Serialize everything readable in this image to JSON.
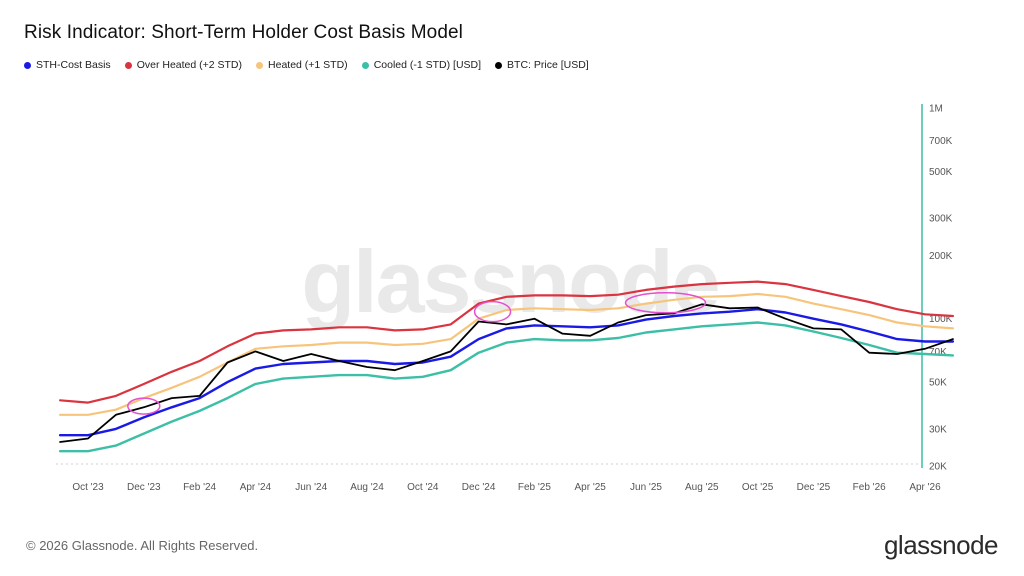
{
  "title": "Risk Indicator: Short-Term Holder Cost Basis Model",
  "footer": {
    "copyright": "© 2026 Glassnode. All Rights Reserved.",
    "logo": "glassnode",
    "watermark": "glassnode"
  },
  "chart_data": {
    "type": "line",
    "title": "Risk Indicator: Short-Term Holder Cost Basis Model",
    "x_ticks": [
      "Oct '23",
      "Dec '23",
      "Feb '24",
      "Apr '24",
      "Jun '24",
      "Aug '24",
      "Oct '24",
      "Dec '24",
      "Feb '25",
      "Apr '25",
      "Jun '25",
      "Aug '25",
      "Oct '25",
      "Dec '25",
      "Feb '26",
      "Apr '26"
    ],
    "y_scale": "log",
    "y_ticks": [
      {
        "value": 20000,
        "label": "20K"
      },
      {
        "value": 30000,
        "label": "30K"
      },
      {
        "value": 50000,
        "label": "50K"
      },
      {
        "value": 70000,
        "label": "70K"
      },
      {
        "value": 100000,
        "label": "100K"
      },
      {
        "value": 200000,
        "label": "200K"
      },
      {
        "value": 300000,
        "label": "300K"
      },
      {
        "value": 500000,
        "label": "500K"
      },
      {
        "value": 700000,
        "label": "700K"
      },
      {
        "value": 1000000,
        "label": "1M"
      }
    ],
    "ylim": [
      20000,
      1000000
    ],
    "x": [
      "2023-09-01",
      "2023-10-01",
      "2023-11-01",
      "2023-12-01",
      "2024-01-01",
      "2024-02-01",
      "2024-03-01",
      "2024-04-01",
      "2024-05-01",
      "2024-06-01",
      "2024-07-01",
      "2024-08-01",
      "2024-09-01",
      "2024-10-01",
      "2024-11-01",
      "2024-12-01",
      "2025-01-01",
      "2025-02-01",
      "2025-03-01",
      "2025-04-01",
      "2025-05-01",
      "2025-06-01",
      "2025-07-01",
      "2025-08-01",
      "2025-09-01",
      "2025-10-01",
      "2025-11-01",
      "2025-12-01",
      "2026-01-01",
      "2026-02-01",
      "2026-03-01",
      "2026-04-01",
      "2026-05-01"
    ],
    "series": [
      {
        "name": "STH-Cost Basis",
        "color": "#1a1ae6",
        "values": [
          28000,
          28000,
          30000,
          34000,
          38000,
          42000,
          50000,
          58000,
          61000,
          62000,
          63000,
          63000,
          61000,
          62000,
          66000,
          80000,
          90000,
          93000,
          92000,
          91000,
          93000,
          99000,
          103000,
          106000,
          108000,
          111000,
          107000,
          100000,
          94000,
          87000,
          80000,
          78000,
          78000
        ]
      },
      {
        "name": "Over Heated (+2 STD)",
        "color": "#d9343f",
        "values": [
          41000,
          40000,
          43000,
          49000,
          56000,
          63000,
          74000,
          85000,
          88000,
          89000,
          91000,
          91000,
          88000,
          89000,
          94000,
          118000,
          127000,
          129000,
          129000,
          128000,
          130000,
          137000,
          142000,
          146000,
          148000,
          150000,
          146000,
          137000,
          128000,
          120000,
          111000,
          105000,
          103000
        ]
      },
      {
        "name": "Heated (+1 STD)",
        "color": "#f7c47c",
        "values": [
          35000,
          35000,
          37000,
          42000,
          47000,
          53000,
          62000,
          72000,
          74000,
          75000,
          77000,
          77000,
          75000,
          76000,
          80000,
          100000,
          110000,
          112000,
          111000,
          110000,
          112000,
          118000,
          123000,
          127000,
          128000,
          131000,
          127000,
          118000,
          111000,
          104000,
          96000,
          92000,
          90000
        ]
      },
      {
        "name": "Cooled (-1 STD) [USD]",
        "color": "#3cbfa6",
        "values": [
          23500,
          23500,
          25000,
          28500,
          32500,
          36500,
          42000,
          49000,
          52000,
          53000,
          54000,
          54000,
          52000,
          53000,
          57000,
          69000,
          77000,
          80000,
          79000,
          79000,
          81000,
          86000,
          89000,
          92000,
          94000,
          96000,
          93000,
          87000,
          81000,
          75000,
          69000,
          68000,
          67000
        ]
      },
      {
        "name": "BTC: Price [USD]",
        "color": "#000000",
        "values": [
          26000,
          27000,
          35000,
          38000,
          42000,
          43000,
          62000,
          70000,
          63000,
          68000,
          63000,
          59000,
          57000,
          63000,
          70000,
          97000,
          94000,
          100000,
          85000,
          83000,
          96000,
          104000,
          106000,
          117000,
          112000,
          113000,
          100000,
          90000,
          89000,
          69000,
          68000,
          72000,
          80000
        ]
      }
    ]
  }
}
